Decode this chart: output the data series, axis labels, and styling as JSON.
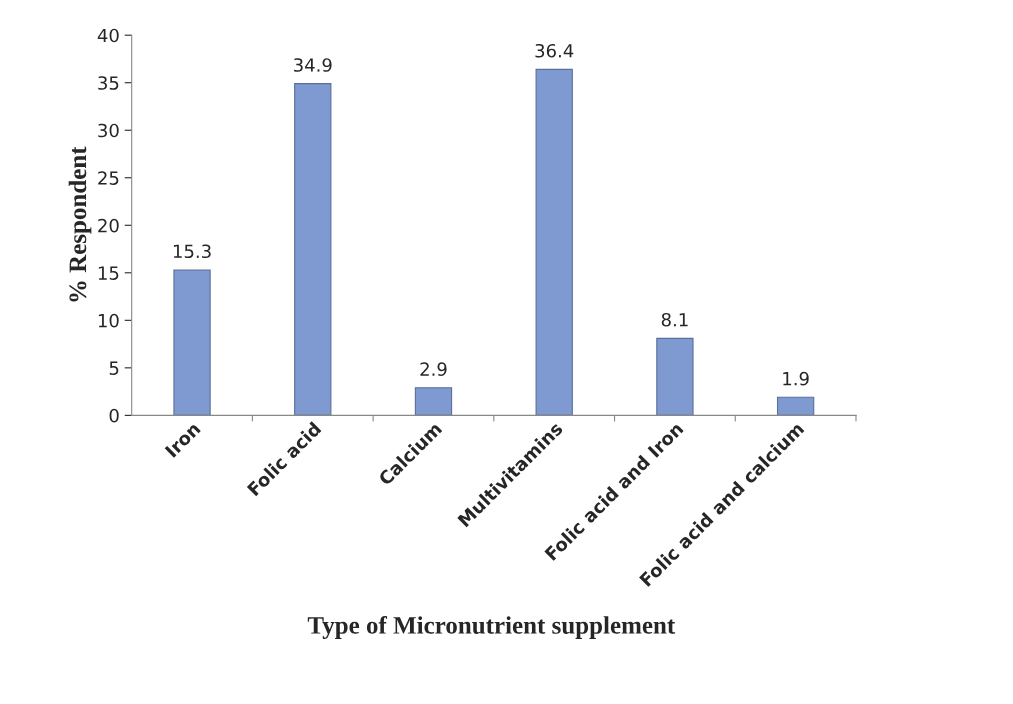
{
  "chart_data": {
    "type": "bar",
    "xlabel": "Type of Micronutrient supplement",
    "ylabel": "% Respondent",
    "categories": [
      "Iron",
      "Folic acid",
      "Calcium",
      "Multivitamins",
      "Folic acid and Iron",
      "Folic acid and calcium"
    ],
    "values": [
      15.3,
      34.9,
      2.9,
      36.4,
      8.1,
      1.9
    ],
    "color": "#7e9ad0",
    "ylim": [
      0,
      40
    ],
    "yticks": [
      0,
      5,
      10,
      15,
      20,
      25,
      30,
      35,
      40
    ],
    "data_labels": true,
    "grid": false,
    "legend": false
  }
}
